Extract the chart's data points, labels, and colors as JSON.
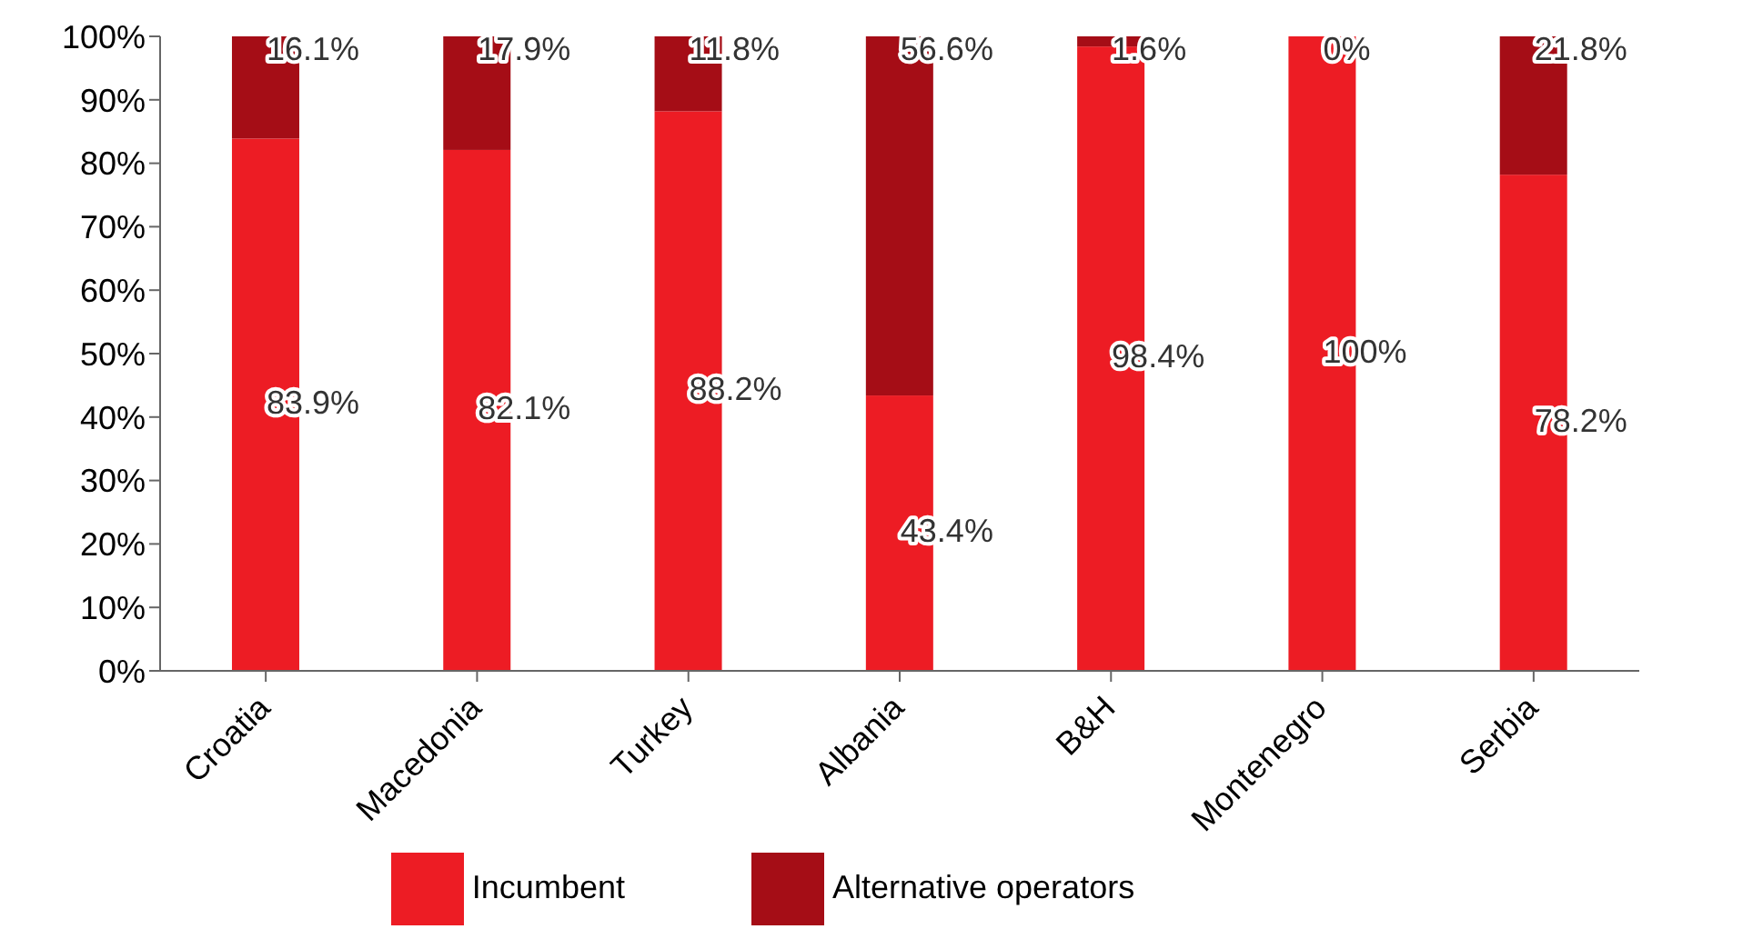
{
  "chart_data": {
    "type": "bar",
    "stacked": true,
    "categories": [
      "Croatia",
      "Macedonia",
      "Turkey",
      "Albania",
      "B&H",
      "Montenegro",
      "Serbia"
    ],
    "series": [
      {
        "name": "Incumbent",
        "color": "#ed1c24",
        "values": [
          83.9,
          82.1,
          88.2,
          43.4,
          98.4,
          100,
          78.2
        ],
        "value_labels": [
          "83.9%",
          "82.1%",
          "88.2%",
          "43.4%",
          "98.4%",
          "100%",
          "78.2%"
        ]
      },
      {
        "name": "Alternative operators",
        "color": "#a50d16",
        "values": [
          16.1,
          17.9,
          11.8,
          56.6,
          1.6,
          0,
          21.8
        ],
        "value_labels": [
          "16.1%",
          "17.9%",
          "11.8%",
          "56.6%",
          "1.6%",
          "0%",
          "21.8%"
        ]
      }
    ],
    "ylim": [
      0,
      100
    ],
    "yticks": [
      {
        "value": 0,
        "label": "0%"
      },
      {
        "value": 10,
        "label": "10%"
      },
      {
        "value": 20,
        "label": "20%"
      },
      {
        "value": 30,
        "label": "30%"
      },
      {
        "value": 40,
        "label": "40%"
      },
      {
        "value": 50,
        "label": "50%"
      },
      {
        "value": 60,
        "label": "60%"
      },
      {
        "value": 70,
        "label": "70%"
      },
      {
        "value": 80,
        "label": "80%"
      },
      {
        "value": 90,
        "label": "90%"
      },
      {
        "value": 100,
        "label": "100%"
      }
    ],
    "grid": false,
    "legend": "bottom"
  }
}
